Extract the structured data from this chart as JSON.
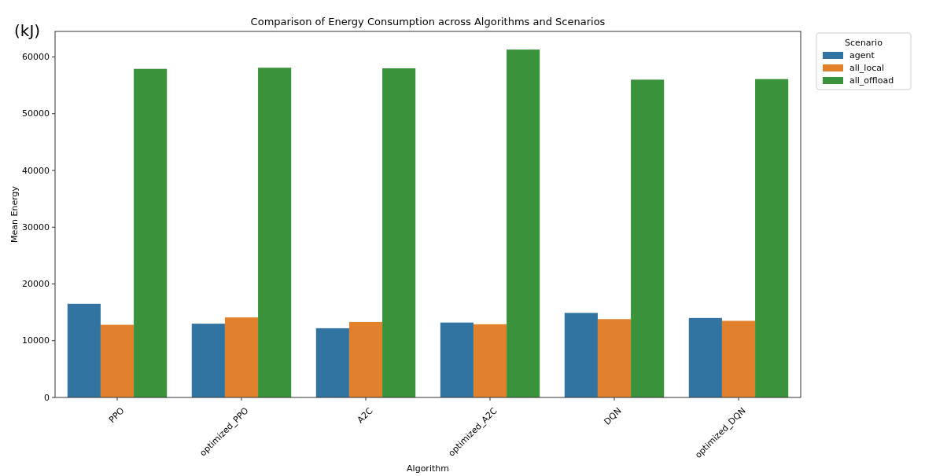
{
  "chart_data": {
    "type": "bar",
    "title": "Comparison of Energy Consumption across Algorithms and Scenarios",
    "xlabel": "Algorithm",
    "ylabel": "Mean Energy",
    "legend_title": "Scenario",
    "annotations": [
      "(kJ)"
    ],
    "categories": [
      "PPO",
      "optimized_PPO",
      "A2C",
      "optimized_A2C",
      "DQN",
      "optimized_DQN"
    ],
    "series": [
      {
        "name": "agent",
        "color": "#3274a1",
        "values": [
          16500,
          13000,
          12200,
          13200,
          14900,
          14000
        ]
      },
      {
        "name": "all_local",
        "color": "#e1812c",
        "values": [
          12800,
          14100,
          13300,
          12900,
          13800,
          13500
        ]
      },
      {
        "name": "all_offload",
        "color": "#3a923a",
        "values": [
          57900,
          58100,
          58000,
          61300,
          56000,
          56100
        ]
      }
    ],
    "ylim": [
      0,
      64500
    ],
    "yticks": [
      0,
      10000,
      20000,
      30000,
      40000,
      50000,
      60000
    ],
    "grid": false,
    "legend": "top right"
  }
}
